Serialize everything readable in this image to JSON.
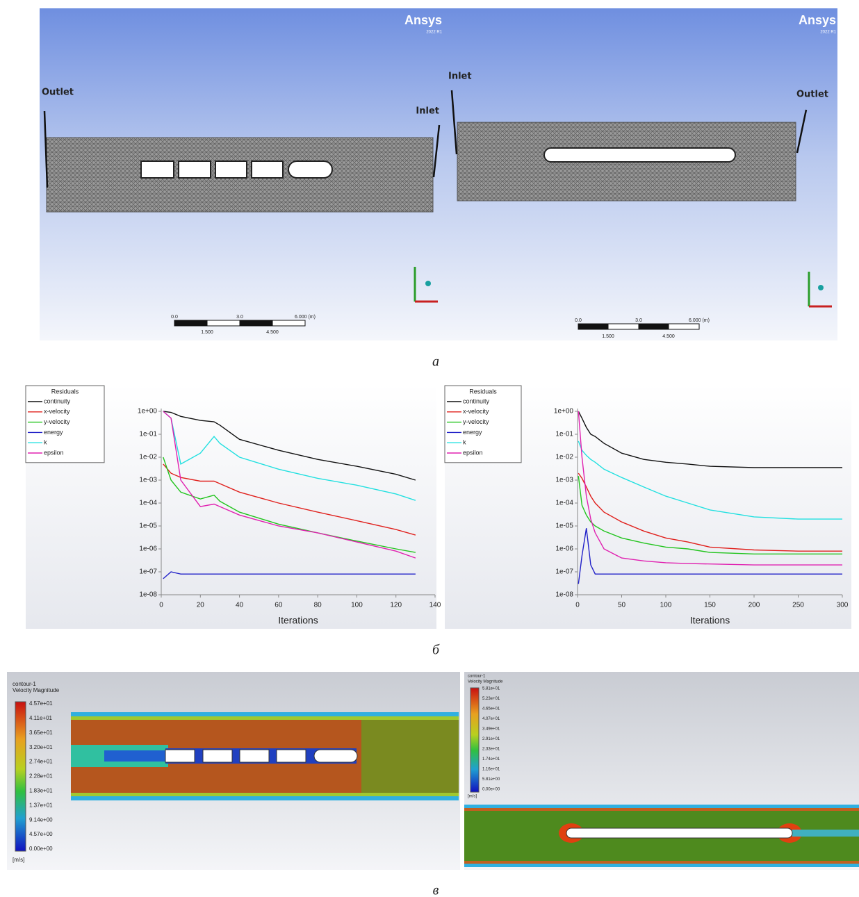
{
  "figure": {
    "mesh": [
      {
        "logo": "Ansys",
        "version": "2022 R1",
        "labels": [
          "Outlet",
          "Inlet"
        ],
        "scale_top": [
          "0.0",
          "3.0",
          "6.000 (m)"
        ],
        "scale_bottom": [
          "1.500",
          "4.500"
        ]
      },
      {
        "logo": "Ansys",
        "version": "2022 R1",
        "labels": [
          "Inlet",
          "Outlet"
        ],
        "scale_top": [
          "0.0",
          "3.0",
          "6.000 (m)"
        ],
        "scale_bottom": [
          "1.500",
          "4.500"
        ]
      }
    ],
    "contours": [
      {
        "name": "contour-1",
        "quantity": "Velocity Magnitude",
        "unit": "[m/s]",
        "levels": [
          "4.57e+01",
          "4.11e+01",
          "3.65e+01",
          "3.20e+01",
          "2.74e+01",
          "2.28e+01",
          "1.83e+01",
          "1.37e+01",
          "9.14e+00",
          "4.57e+00",
          "0.00e+00"
        ]
      },
      {
        "name": "contour-1",
        "quantity": "Velocity Magnitude",
        "unit": "[m/s]",
        "levels": [
          "5.81e+01",
          "5.23e+01",
          "4.65e+01",
          "4.07e+01",
          "3.49e+01",
          "2.91e+01",
          "2.33e+01",
          "1.74e+01",
          "1.16e+01",
          "5.81e+00",
          "0.00e+00"
        ]
      }
    ],
    "captions": [
      "а",
      "б",
      "в"
    ]
  },
  "chart_data": [
    {
      "type": "line",
      "legend_title": "Residuals",
      "x_label": "Iterations",
      "log_scale": true,
      "xlim": [
        0,
        140
      ],
      "xticks": [
        0,
        20,
        40,
        60,
        80,
        100,
        120,
        140
      ],
      "ylim": [
        1e-08,
        1
      ],
      "yticks": [
        {
          "value": 1e-08,
          "label": "1e-08"
        },
        {
          "value": 1e-07,
          "label": "1e-07"
        },
        {
          "value": 1e-06,
          "label": "1e-06"
        },
        {
          "value": 1e-05,
          "label": "1e-05"
        },
        {
          "value": 0.0001,
          "label": "1e-04"
        },
        {
          "value": 0.001,
          "label": "1e-03"
        },
        {
          "value": 0.01,
          "label": "1e-02"
        },
        {
          "value": 0.1,
          "label": "1e-01"
        },
        {
          "value": 1,
          "label": "1e+00"
        }
      ],
      "x": [
        1,
        5,
        10,
        20,
        27,
        30,
        40,
        60,
        80,
        100,
        120,
        130
      ],
      "series": [
        {
          "name": "continuity",
          "color": "#111111",
          "values": [
            1,
            0.9,
            0.6,
            0.4,
            0.35,
            0.25,
            0.06,
            0.02,
            0.008,
            0.004,
            0.0018,
            0.001
          ]
        },
        {
          "name": "x-velocity",
          "color": "#e0201c",
          "values": [
            0.005,
            0.002,
            0.0013,
            0.0009,
            0.0009,
            0.0007,
            0.0003,
            0.0001,
            4e-05,
            1.7e-05,
            7e-06,
            4e-06
          ]
        },
        {
          "name": "y-velocity",
          "color": "#22c41e",
          "values": [
            0.01,
            0.001,
            0.0003,
            0.00015,
            0.00022,
            0.00012,
            4e-05,
            1.2e-05,
            5e-06,
            2.2e-06,
            1e-06,
            7e-07
          ]
        },
        {
          "name": "energy",
          "color": "#2020c8",
          "values": [
            5e-08,
            1e-07,
            8e-08,
            8e-08,
            8e-08,
            8e-08,
            8e-08,
            8e-08,
            8e-08,
            8e-08,
            8e-08,
            8e-08
          ]
        },
        {
          "name": "k",
          "color": "#22e0e0",
          "values": [
            1,
            0.5,
            0.005,
            0.015,
            0.08,
            0.04,
            0.01,
            0.003,
            0.0012,
            0.0006,
            0.00025,
            0.00013
          ]
        },
        {
          "name": "epsilon",
          "color": "#e020b0",
          "values": [
            1,
            0.5,
            0.001,
            7e-05,
            9e-05,
            7e-05,
            3e-05,
            1e-05,
            5e-06,
            2e-06,
            8e-07,
            4e-07
          ]
        }
      ]
    },
    {
      "type": "line",
      "legend_title": "Residuals",
      "x_label": "Iterations",
      "log_scale": true,
      "xlim": [
        0,
        300
      ],
      "xticks": [
        0,
        50,
        100,
        150,
        200,
        250,
        300
      ],
      "ylim": [
        1e-08,
        1
      ],
      "yticks": [
        {
          "value": 1e-08,
          "label": "1e-08"
        },
        {
          "value": 1e-07,
          "label": "1e-07"
        },
        {
          "value": 1e-06,
          "label": "1e-06"
        },
        {
          "value": 1e-05,
          "label": "1e-05"
        },
        {
          "value": 0.0001,
          "label": "1e-04"
        },
        {
          "value": 0.001,
          "label": "1e-03"
        },
        {
          "value": 0.01,
          "label": "1e-02"
        },
        {
          "value": 0.1,
          "label": "1e-01"
        },
        {
          "value": 1,
          "label": "1e+00"
        }
      ],
      "x": [
        1,
        5,
        10,
        15,
        20,
        30,
        50,
        75,
        100,
        125,
        150,
        200,
        250,
        300
      ],
      "series": [
        {
          "name": "continuity",
          "color": "#111111",
          "values": [
            1,
            0.5,
            0.2,
            0.1,
            0.08,
            0.04,
            0.015,
            0.008,
            0.006,
            0.005,
            0.004,
            0.0035,
            0.0035,
            0.0035
          ]
        },
        {
          "name": "x-velocity",
          "color": "#e0201c",
          "values": [
            0.002,
            0.0012,
            0.0005,
            0.0002,
            0.0001,
            4e-05,
            1.5e-05,
            6e-06,
            3e-06,
            2e-06,
            1.2e-06,
            9e-07,
            8e-07,
            8e-07
          ]
        },
        {
          "name": "y-velocity",
          "color": "#22c41e",
          "values": [
            0.0015,
            8e-05,
            3e-05,
            1.5e-05,
            1e-05,
            6e-06,
            3e-06,
            1.8e-06,
            1.2e-06,
            1e-06,
            7e-07,
            6e-07,
            6e-07,
            6e-07
          ]
        },
        {
          "name": "energy",
          "color": "#2020c8",
          "values": [
            3e-08,
            5e-07,
            8e-06,
            2e-07,
            8e-08,
            8e-08,
            8e-08,
            8e-08,
            8e-08,
            8e-08,
            8e-08,
            8e-08,
            8e-08,
            8e-08
          ]
        },
        {
          "name": "k",
          "color": "#22e0e0",
          "values": [
            0.05,
            0.02,
            0.012,
            0.008,
            0.006,
            0.003,
            0.0013,
            0.0005,
            0.0002,
            0.0001,
            5e-05,
            2.5e-05,
            2e-05,
            2e-05
          ]
        },
        {
          "name": "epsilon",
          "color": "#e020b0",
          "values": [
            1,
            0.01,
            0.0002,
            2e-05,
            5e-06,
            1e-06,
            4e-07,
            3e-07,
            2.5e-07,
            2.3e-07,
            2.2e-07,
            2e-07,
            2e-07,
            2e-07
          ]
        }
      ]
    }
  ]
}
